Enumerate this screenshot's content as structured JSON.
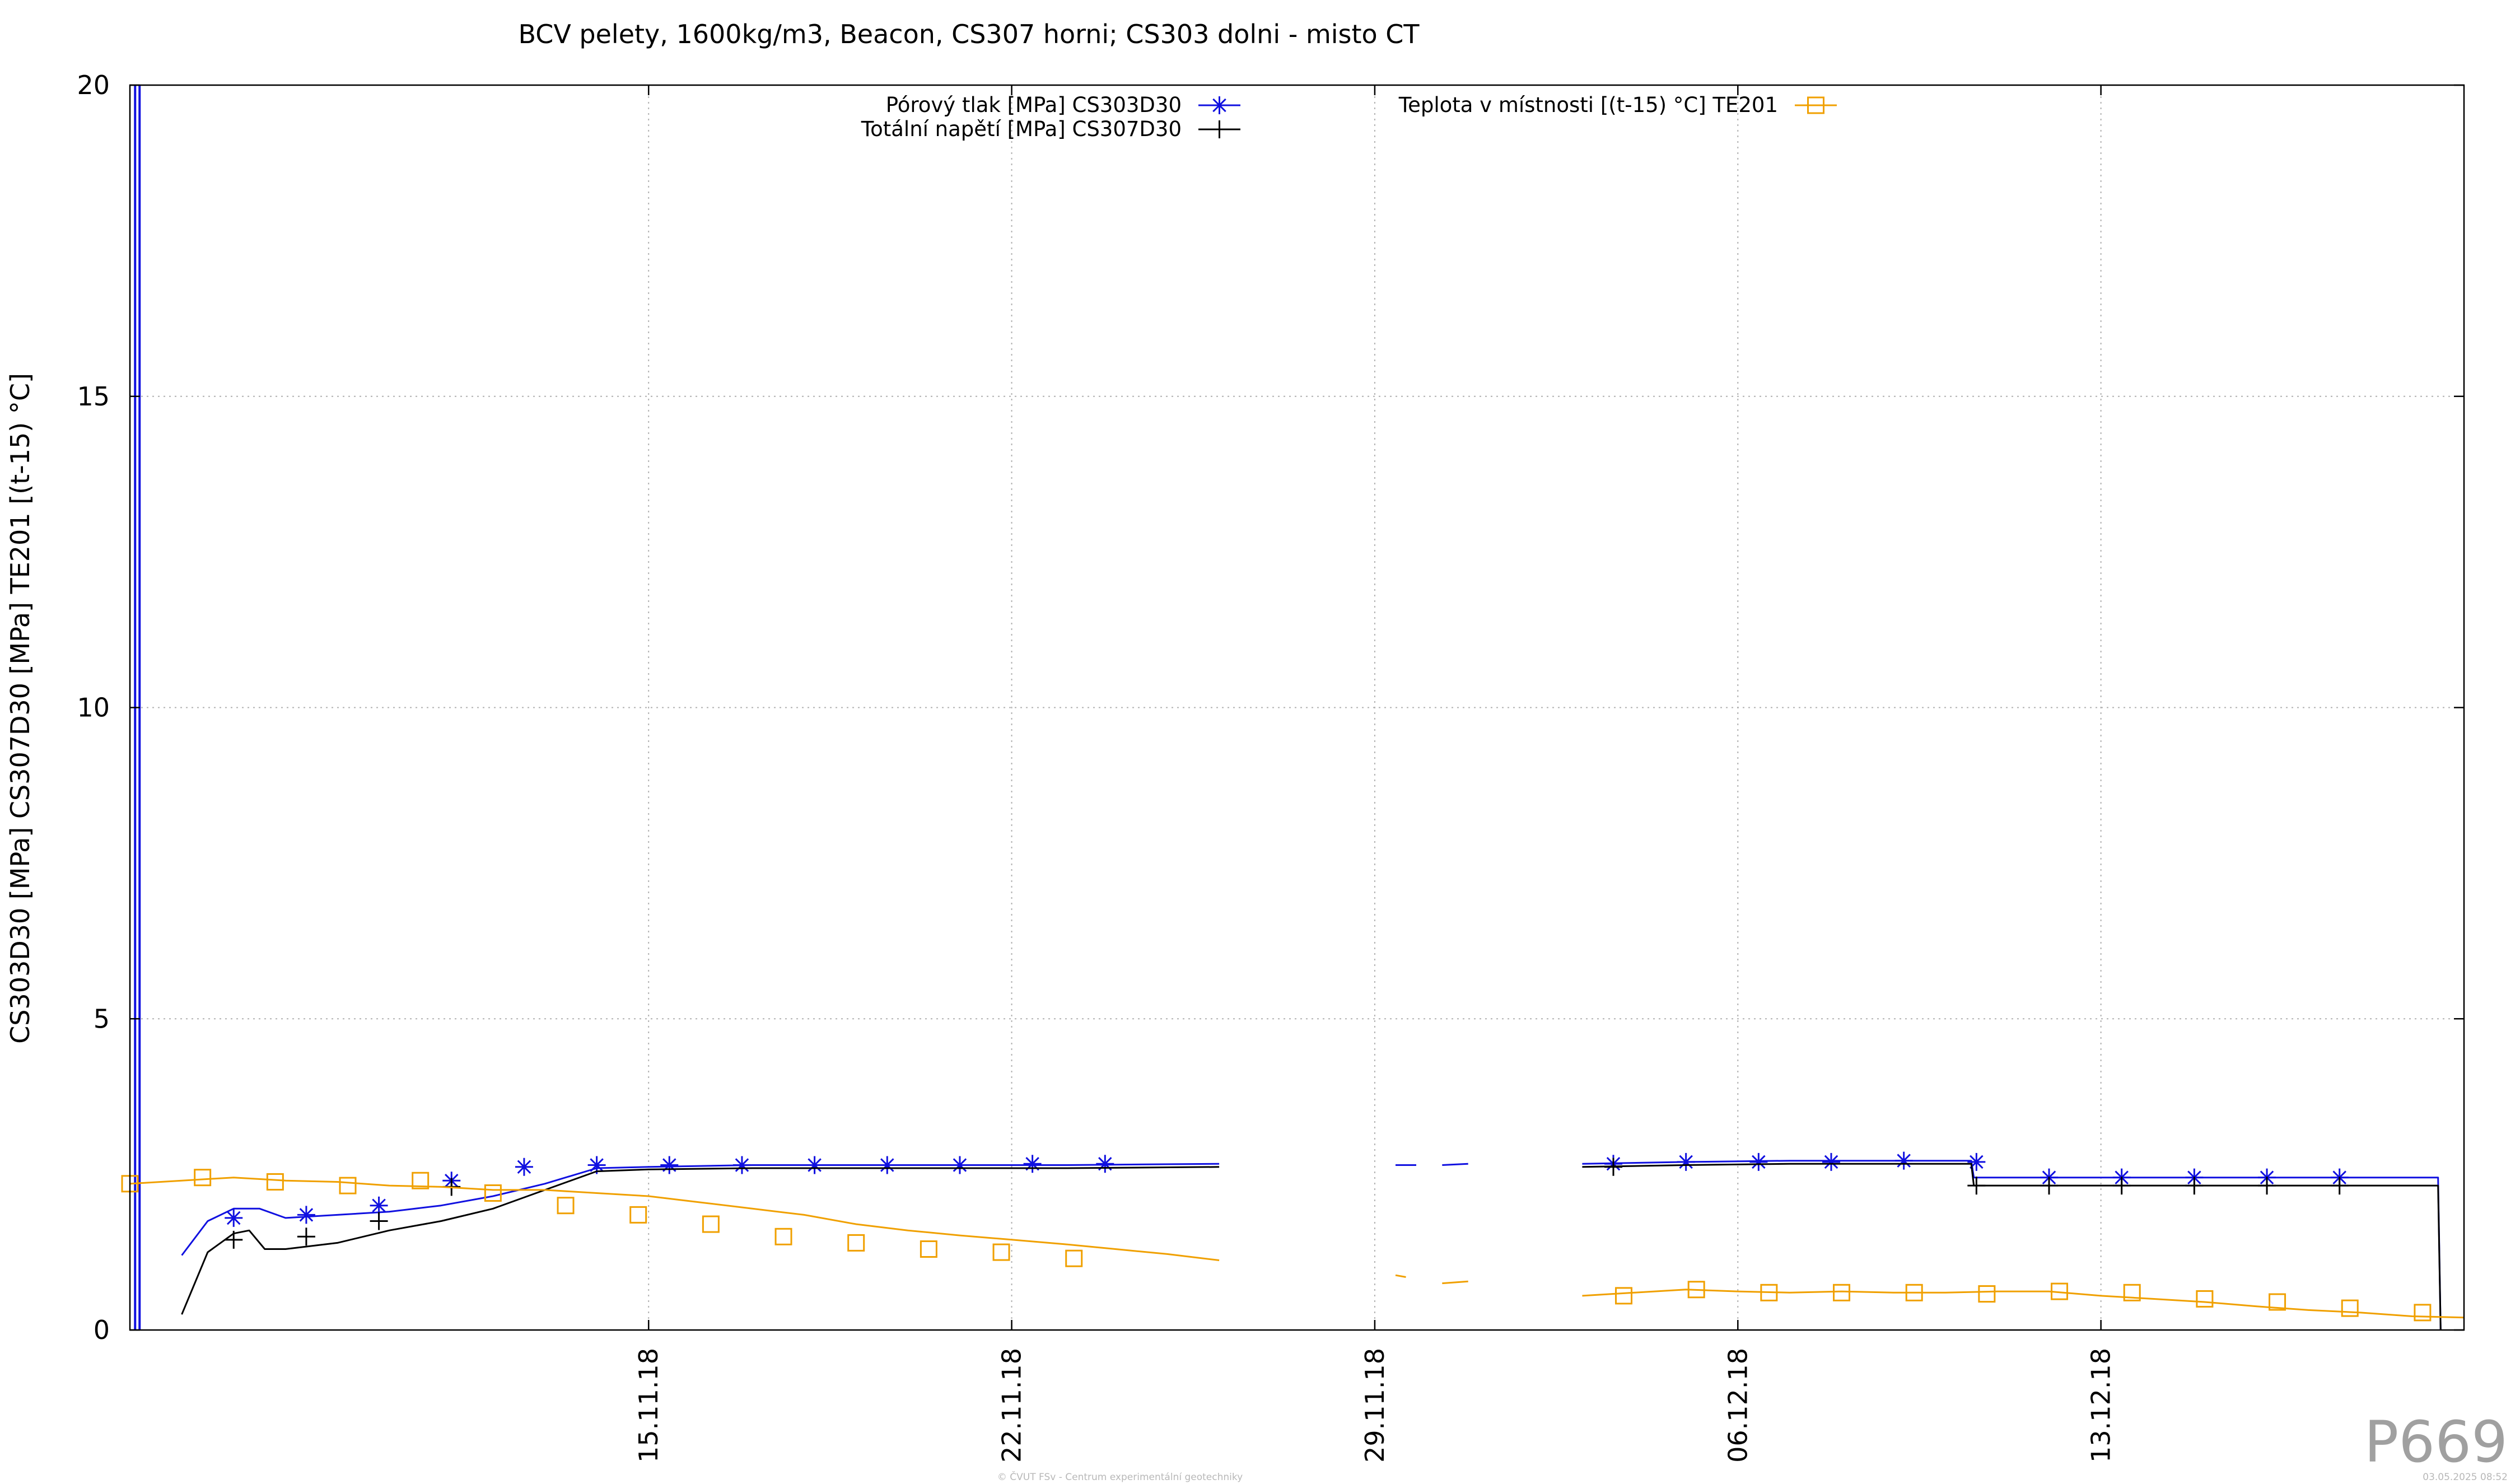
{
  "chart_data": {
    "type": "line",
    "title": "BCV pelety, 1600kg/m3, Beacon, CS307 horni; CS303 dolni - misto CT",
    "ylabel": "CS303D30 [MPa] CS307D30 [MPa] TE201 [(t-15) °C]",
    "xlabel": "",
    "xlim": [
      "2018-11-05",
      "2018-12-20"
    ],
    "ylim": [
      0,
      20
    ],
    "x_ticks": [
      "15.11.18",
      "22.11.18",
      "29.11.18",
      "06.12.18",
      "13.12.18"
    ],
    "y_ticks": [
      "0",
      "5",
      "10",
      "15",
      "20"
    ],
    "grid": true,
    "legend_position": "top",
    "series": [
      {
        "name": "Pórový tlak [MPa] CS303D30",
        "color": "#1010e0",
        "marker": "asterisk",
        "segments": [
          [
            [
              "2018-11-06",
              1.2
            ],
            [
              "2018-11-06.5",
              1.75
            ],
            [
              "2018-11-07",
              1.95
            ],
            [
              "2018-11-07.5",
              1.95
            ],
            [
              "2018-11-08",
              1.8
            ],
            [
              "2018-11-09",
              1.85
            ],
            [
              "2018-11-10",
              1.9
            ],
            [
              "2018-11-11",
              2.0
            ],
            [
              "2018-11-12",
              2.15
            ],
            [
              "2018-11-13",
              2.35
            ],
            [
              "2018-11-14",
              2.6
            ],
            [
              "2018-11-15",
              2.62
            ],
            [
              "2018-11-17",
              2.65
            ],
            [
              "2018-11-20",
              2.65
            ],
            [
              "2018-11-23",
              2.65
            ],
            [
              "2018-11-26",
              2.67
            ]
          ],
          [
            [
              "2018-11-29.4",
              2.65
            ],
            [
              "2018-11-29.8",
              2.65
            ]
          ],
          [
            [
              "2018-11-30.3",
              2.65
            ],
            [
              "2018-11-30.8",
              2.67
            ]
          ],
          [
            [
              "2018-12-03",
              2.67
            ],
            [
              "2018-12-05",
              2.7
            ],
            [
              "2018-12-07",
              2.72
            ],
            [
              "2018-12-09",
              2.72
            ],
            [
              "2018-12-10.5",
              2.72
            ],
            [
              "2018-12-10.55",
              2.45
            ],
            [
              "2018-12-12",
              2.45
            ],
            [
              "2018-12-14",
              2.45
            ],
            [
              "2018-12-15",
              2.45
            ],
            [
              "2018-12-19.5",
              2.45
            ],
            [
              "2018-12-19.55",
              0.0
            ]
          ]
        ],
        "markers": [
          [
            "2018-11-07",
            1.8
          ],
          [
            "2018-11-08.4",
            1.85
          ],
          [
            "2018-11-09.8",
            2.0
          ],
          [
            "2018-11-11.2",
            2.4
          ],
          [
            "2018-11-12.6",
            2.62
          ],
          [
            "2018-11-14",
            2.65
          ],
          [
            "2018-11-15.4",
            2.65
          ],
          [
            "2018-11-16.8",
            2.65
          ],
          [
            "2018-11-18.2",
            2.65
          ],
          [
            "2018-11-19.6",
            2.65
          ],
          [
            "2018-11-21",
            2.65
          ],
          [
            "2018-11-22.4",
            2.67
          ],
          [
            "2018-11-23.8",
            2.67
          ],
          [
            "2018-12-03.6",
            2.67
          ],
          [
            "2018-12-05",
            2.7
          ],
          [
            "2018-12-06.4",
            2.7
          ],
          [
            "2018-12-07.8",
            2.7
          ],
          [
            "2018-12-09.2",
            2.72
          ],
          [
            "2018-12-10.6",
            2.7
          ],
          [
            "2018-12-12",
            2.45
          ],
          [
            "2018-12-13.4",
            2.45
          ],
          [
            "2018-12-14.8",
            2.45
          ],
          [
            "2018-12-16.2",
            2.45
          ],
          [
            "2018-12-17.6",
            2.45
          ]
        ]
      },
      {
        "name": "Totální napětí [MPa] CS307D30",
        "color": "#000000",
        "marker": "plus",
        "segments": [
          [
            [
              "2018-11-06",
              0.25
            ],
            [
              "2018-11-06.5",
              1.25
            ],
            [
              "2018-11-07",
              1.55
            ],
            [
              "2018-11-07.3",
              1.6
            ],
            [
              "2018-11-07.6",
              1.3
            ],
            [
              "2018-11-08",
              1.3
            ],
            [
              "2018-11-09",
              1.4
            ],
            [
              "2018-11-10",
              1.6
            ],
            [
              "2018-11-11",
              1.75
            ],
            [
              "2018-11-12",
              1.95
            ],
            [
              "2018-11-13",
              2.25
            ],
            [
              "2018-11-14",
              2.55
            ],
            [
              "2018-11-15",
              2.58
            ],
            [
              "2018-11-17",
              2.6
            ],
            [
              "2018-11-20",
              2.6
            ],
            [
              "2018-11-23",
              2.6
            ],
            [
              "2018-11-26",
              2.62
            ]
          ],
          [
            [
              "2018-12-03",
              2.62
            ],
            [
              "2018-12-05",
              2.65
            ],
            [
              "2018-12-07",
              2.67
            ],
            [
              "2018-12-09",
              2.67
            ],
            [
              "2018-12-10.5",
              2.67
            ],
            [
              "2018-12-10.55",
              2.32
            ],
            [
              "2018-12-12",
              2.32
            ],
            [
              "2018-12-14",
              2.32
            ],
            [
              "2018-12-16",
              2.32
            ],
            [
              "2018-12-19.5",
              2.32
            ],
            [
              "2018-12-19.55",
              0.0
            ]
          ]
        ],
        "markers": [
          [
            "2018-11-07",
            1.45
          ],
          [
            "2018-11-08.4",
            1.5
          ],
          [
            "2018-11-09.8",
            1.75
          ],
          [
            "2018-11-11.2",
            2.3
          ],
          [
            "2018-12-03.6",
            2.62
          ],
          [
            "2018-12-10.6",
            2.32
          ],
          [
            "2018-12-12",
            2.32
          ],
          [
            "2018-12-13.4",
            2.32
          ],
          [
            "2018-12-14.8",
            2.32
          ],
          [
            "2018-12-16.2",
            2.32
          ],
          [
            "2018-12-17.6",
            2.32
          ]
        ]
      },
      {
        "name": "Teplota v místnosti [(t-15) °C] TE201",
        "color": "#f0a000",
        "marker": "square",
        "segments": [
          [
            [
              "2018-11-05",
              2.35
            ],
            [
              "2018-11-06",
              2.4
            ],
            [
              "2018-11-07",
              2.45
            ],
            [
              "2018-11-08",
              2.4
            ],
            [
              "2018-11-09",
              2.38
            ],
            [
              "2018-11-10",
              2.32
            ],
            [
              "2018-11-11",
              2.3
            ],
            [
              "2018-11-12",
              2.25
            ],
            [
              "2018-11-13",
              2.25
            ],
            [
              "2018-11-14",
              2.2
            ],
            [
              "2018-11-15",
              2.15
            ],
            [
              "2018-11-16",
              2.05
            ],
            [
              "2018-11-17",
              1.95
            ],
            [
              "2018-11-18",
              1.85
            ],
            [
              "2018-11-19",
              1.7
            ],
            [
              "2018-11-20",
              1.6
            ],
            [
              "2018-11-21",
              1.52
            ],
            [
              "2018-11-22",
              1.45
            ],
            [
              "2018-11-23",
              1.38
            ],
            [
              "2018-11-24",
              1.3
            ],
            [
              "2018-11-25",
              1.22
            ],
            [
              "2018-11-26",
              1.12
            ]
          ],
          [
            [
              "2018-11-29.4",
              0.88
            ],
            [
              "2018-11-29.6",
              0.85
            ]
          ],
          [
            [
              "2018-11-30.3",
              0.75
            ],
            [
              "2018-11-30.8",
              0.78
            ]
          ],
          [
            [
              "2018-12-03",
              0.55
            ],
            [
              "2018-12-04",
              0.6
            ],
            [
              "2018-12-05",
              0.65
            ],
            [
              "2018-12-06",
              0.62
            ],
            [
              "2018-12-07",
              0.6
            ],
            [
              "2018-12-08",
              0.62
            ],
            [
              "2018-12-09",
              0.6
            ],
            [
              "2018-12-10",
              0.6
            ],
            [
              "2018-12-11",
              0.62
            ],
            [
              "2018-12-12",
              0.62
            ],
            [
              "2018-12-13",
              0.55
            ],
            [
              "2018-12-14",
              0.5
            ],
            [
              "2018-12-15",
              0.45
            ],
            [
              "2018-12-16",
              0.38
            ],
            [
              "2018-12-17",
              0.32
            ],
            [
              "2018-12-18",
              0.28
            ],
            [
              "2018-12-19",
              0.22
            ],
            [
              "2018-12-20",
              0.2
            ]
          ]
        ],
        "markers": [
          [
            "2018-11-05",
            2.35
          ],
          [
            "2018-11-06.4",
            2.45
          ],
          [
            "2018-11-07.8",
            2.38
          ],
          [
            "2018-11-09.2",
            2.32
          ],
          [
            "2018-11-10.6",
            2.4
          ],
          [
            "2018-11-12",
            2.2
          ],
          [
            "2018-11-13.4",
            2.0
          ],
          [
            "2018-11-14.8",
            1.85
          ],
          [
            "2018-11-16.2",
            1.7
          ],
          [
            "2018-11-17.6",
            1.5
          ],
          [
            "2018-11-19",
            1.4
          ],
          [
            "2018-11-20.4",
            1.3
          ],
          [
            "2018-11-21.8",
            1.25
          ],
          [
            "2018-11-23.2",
            1.15
          ],
          [
            "2018-12-03.8",
            0.55
          ],
          [
            "2018-12-05.2",
            0.65
          ],
          [
            "2018-12-06.6",
            0.6
          ],
          [
            "2018-12-08",
            0.6
          ],
          [
            "2018-12-09.4",
            0.6
          ],
          [
            "2018-12-10.8",
            0.58
          ],
          [
            "2018-12-12.2",
            0.62
          ],
          [
            "2018-12-13.6",
            0.6
          ],
          [
            "2018-12-15",
            0.5
          ],
          [
            "2018-12-16.4",
            0.45
          ],
          [
            "2018-12-17.8",
            0.35
          ],
          [
            "2018-12-19.2",
            0.28
          ]
        ]
      }
    ],
    "vertical_spike": {
      "series": "Pórový tlak [MPa] CS303D30",
      "x": "2018-11-05.1",
      "y_from": 0,
      "y_to": 20
    }
  },
  "plot_id": "P669",
  "footer_center": "© ČVUT FSv - Centrum experimentální geotechniky",
  "footer_right": "03.05.2025 08:52"
}
